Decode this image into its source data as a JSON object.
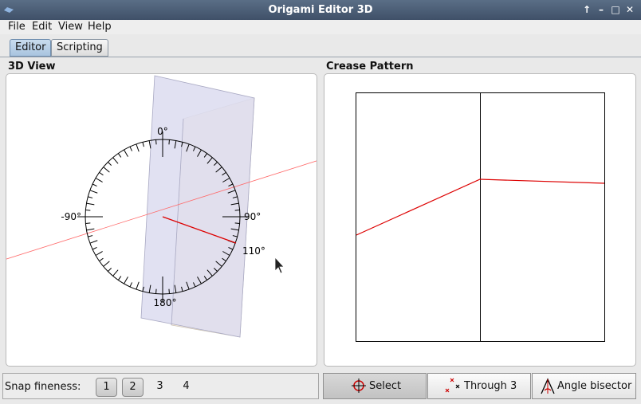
{
  "window": {
    "title": "Origami Editor 3D",
    "controls": [
      "↑",
      "–",
      "□",
      "✕"
    ]
  },
  "menu": {
    "items": [
      "File",
      "Edit",
      "View",
      "Help"
    ]
  },
  "tabs": [
    {
      "label": "Editor",
      "active": true
    },
    {
      "label": "Scripting",
      "active": false
    }
  ],
  "view3d": {
    "title": "3D View",
    "protractor": {
      "labels": [
        "0°",
        "90°",
        "180°",
        "-90°"
      ],
      "current_angle_label": "110°"
    }
  },
  "crease_pattern": {
    "title": "Crease Pattern"
  },
  "snap": {
    "label": "Snap fineness:",
    "options": [
      "1",
      "2",
      "3",
      "4"
    ],
    "highlighted": [
      "1",
      "2"
    ]
  },
  "tools": [
    {
      "label": "Select",
      "icon": "crosshair-icon",
      "active": true
    },
    {
      "label": "Through 3",
      "icon": "three-points-icon",
      "active": false
    },
    {
      "label": "Angle bisector",
      "icon": "angle-bisector-icon",
      "active": false
    }
  ],
  "colors": {
    "crease": "#dd0000",
    "paper_front": "#dcdcf0",
    "paper_back": "#fbeedd",
    "accent": "#3f5068"
  }
}
